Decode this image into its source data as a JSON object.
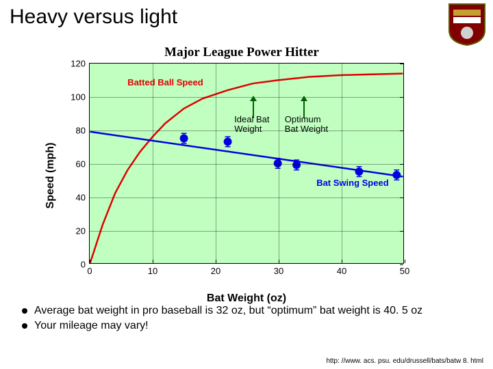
{
  "slide_title": "Heavy versus light",
  "chart": {
    "type": "line+scatter",
    "title": "Major League Power Hitter",
    "xlabel": "Bat Weight (oz)",
    "ylabel": "Speed (mph)",
    "xlim": [
      0,
      50
    ],
    "ylim": [
      0,
      120
    ],
    "xtick_step": 10,
    "ytick_step": 20,
    "background_color": "#c0ffc0",
    "grid_color": "rgba(0,0,0,0.35)",
    "series_red": {
      "label": "Batted Ball Speed",
      "color": "#e00000",
      "linewidth": 2.5,
      "x": [
        0,
        2,
        4,
        6,
        8,
        10,
        12,
        15,
        18,
        22,
        26,
        30,
        35,
        40,
        45,
        50
      ],
      "y": [
        0,
        23,
        42,
        56,
        67,
        76,
        84,
        93,
        99,
        104,
        108,
        110,
        112,
        113,
        113.5,
        114
      ]
    },
    "series_blue": {
      "label": "Bat Swing Speed",
      "color": "#0000e0",
      "linewidth": 2.5,
      "marker": "circle",
      "marker_size": 6,
      "x": [
        15,
        22,
        30,
        33,
        43,
        49
      ],
      "y": [
        75,
        73,
        60,
        59,
        55,
        53
      ],
      "yerr": [
        3,
        3,
        3,
        3,
        3,
        3
      ],
      "trend_x": [
        0,
        50
      ],
      "trend_y": [
        79,
        52
      ]
    },
    "annot_ideal": {
      "label1": "Ideal Bat",
      "label2": "Weight",
      "x": 26
    },
    "annot_optimum": {
      "label1": "Optimum",
      "label2": "Bat Weight",
      "x": 34
    }
  },
  "bullets": [
    "Average bat weight in pro baseball is 32 oz, but “optimum” bat weight is 40. 5 oz",
    "Your mileage may vary!"
  ],
  "source": "http: //www. acs. psu. edu/drussell/bats/batw 8. html"
}
